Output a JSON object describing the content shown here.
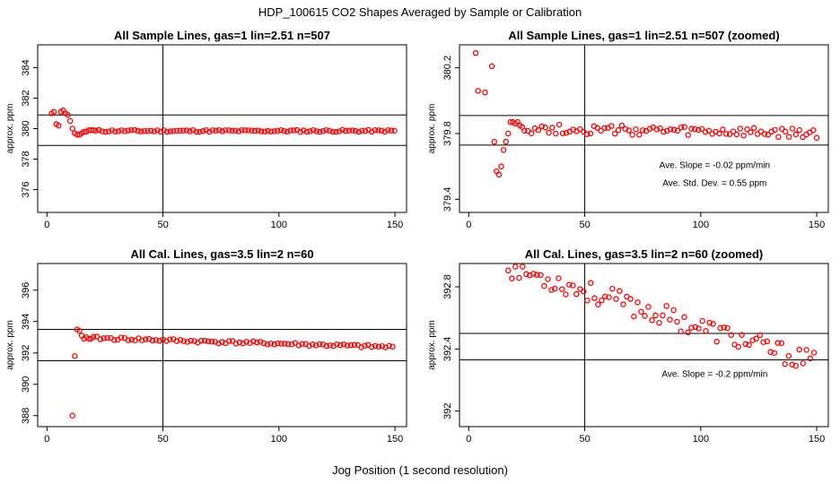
{
  "figure": {
    "title": "HDP_100615  CO2 Shapes Averaged by Sample or Calibration",
    "xlabel": "Jog Position (1 second resolution)"
  },
  "colors": {
    "points": "#ff0000",
    "lines": "#000000"
  },
  "chart_data": [
    {
      "type": "scatter",
      "title": "All Sample Lines, gas=1 lin=2.51 n=507",
      "xlabel": "",
      "ylabel": "approx. ppm",
      "xlim": [
        -4,
        155
      ],
      "ylim": [
        374.5,
        385.5
      ],
      "xticks": [
        0,
        50,
        100,
        150
      ],
      "yticks": [
        376,
        378,
        380,
        382,
        384
      ],
      "vline": 50,
      "hlines": [
        378.9,
        380.9
      ],
      "annotations": [],
      "series": [
        {
          "x": [],
          "y": []
        }
      ]
    },
    {
      "type": "scatter",
      "title": "All Sample Lines, gas=1 lin=2.51 n=507 (zoomed)",
      "xlabel": "",
      "ylabel": "approx. ppm",
      "xlim": [
        -4,
        155
      ],
      "ylim": [
        379.32,
        380.34
      ],
      "xticks": [
        0,
        50,
        100,
        150
      ],
      "yticks": [
        379.4,
        379.8,
        380.2
      ],
      "vline": 50,
      "hlines": [
        379.73,
        379.91
      ],
      "annotations": [
        {
          "text": "Ave. Slope =  -0.02  ppm/min",
          "x": 106,
          "y": 379.59
        },
        {
          "text": "Ave. Std. Dev. =  0.55  ppm",
          "x": 106,
          "y": 379.48
        }
      ],
      "series": [
        {
          "x": [],
          "y": []
        }
      ]
    },
    {
      "type": "scatter",
      "title": "All Cal. Lines, gas=3.5 lin=2 n=60",
      "xlabel": "",
      "ylabel": "approx. ppm",
      "xlim": [
        -4,
        155
      ],
      "ylim": [
        387.3,
        397.7
      ],
      "xticks": [
        0,
        50,
        100,
        150
      ],
      "yticks": [
        388,
        390,
        392,
        394,
        396
      ],
      "vline": 50,
      "hlines": [
        391.5,
        393.5
      ],
      "annotations": [],
      "series": [
        {
          "x": [],
          "y": []
        }
      ]
    },
    {
      "type": "scatter",
      "title": "All Cal. Lines, gas=3.5 lin=2 n=60 (zoomed)",
      "xlabel": "",
      "ylabel": "approx. ppm",
      "xlim": [
        -4,
        155
      ],
      "ylim": [
        391.9,
        392.95
      ],
      "xticks": [
        0,
        50,
        100,
        150
      ],
      "yticks": [
        392.0,
        392.4,
        392.8
      ],
      "vline": 50,
      "hlines": [
        392.33,
        392.5
      ],
      "annotations": [
        {
          "text": "Ave. Slope =  -0.2  ppm/min",
          "x": 106,
          "y": 392.22
        }
      ],
      "series": [
        {
          "x": [],
          "y": []
        }
      ]
    }
  ]
}
